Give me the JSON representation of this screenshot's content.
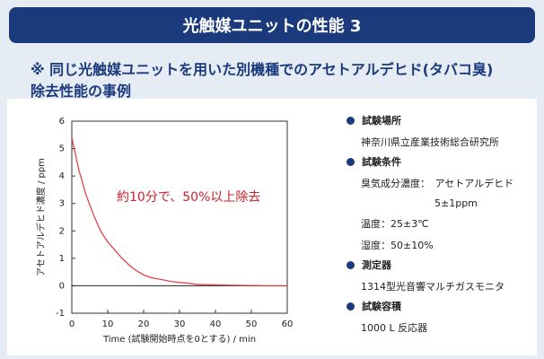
{
  "header": {
    "title": "光触媒ユニットの性能 3",
    "subtitle": [
      "※ 同じ光触媒ユニットを用いた別機種でのアセトアルデヒド(タバコ臭)",
      "除去性能の事例"
    ]
  },
  "chart_data": {
    "type": "line",
    "color": "#e8323c",
    "annotation": "約10分で、50%以上除去",
    "x_label": "Time (試験開始時点を0とする) / min",
    "y_label": "アセトアルデヒド濃度 / ppm",
    "x": [
      0,
      2,
      4,
      6,
      8,
      10,
      12,
      14,
      16,
      18,
      20,
      22,
      24,
      26,
      28,
      30,
      32,
      35,
      40,
      45,
      50,
      55,
      60
    ],
    "values": [
      5.4,
      4.2,
      3.3,
      2.6,
      2.0,
      1.6,
      1.3,
      1.0,
      0.75,
      0.55,
      0.4,
      0.3,
      0.25,
      0.2,
      0.15,
      0.12,
      0.1,
      0.05,
      0.03,
      0.02,
      0.01,
      0,
      0
    ],
    "xlim": [
      0,
      60
    ],
    "xticks": [
      0,
      10,
      20,
      30,
      40,
      50,
      60
    ],
    "ylim": [
      -1,
      6
    ],
    "yticks": [
      -1,
      0,
      1,
      2,
      3,
      4,
      5,
      6
    ]
  },
  "info": [
    {
      "heading": "試験場所",
      "lines": [
        "神奈川県立産業技術総合研究所"
      ]
    },
    {
      "heading": "試験条件",
      "lines": [
        "臭気成分濃度：　アセトアルデヒド",
        "5±1ppm",
        "温度：25±3℃",
        "湿度：50±10%"
      ]
    },
    {
      "heading": "測定器",
      "lines": [
        "1314型光音響マルチガスモニタ"
      ]
    },
    {
      "heading": "試験容積",
      "lines": [
        "1000 L 反応器"
      ]
    }
  ]
}
